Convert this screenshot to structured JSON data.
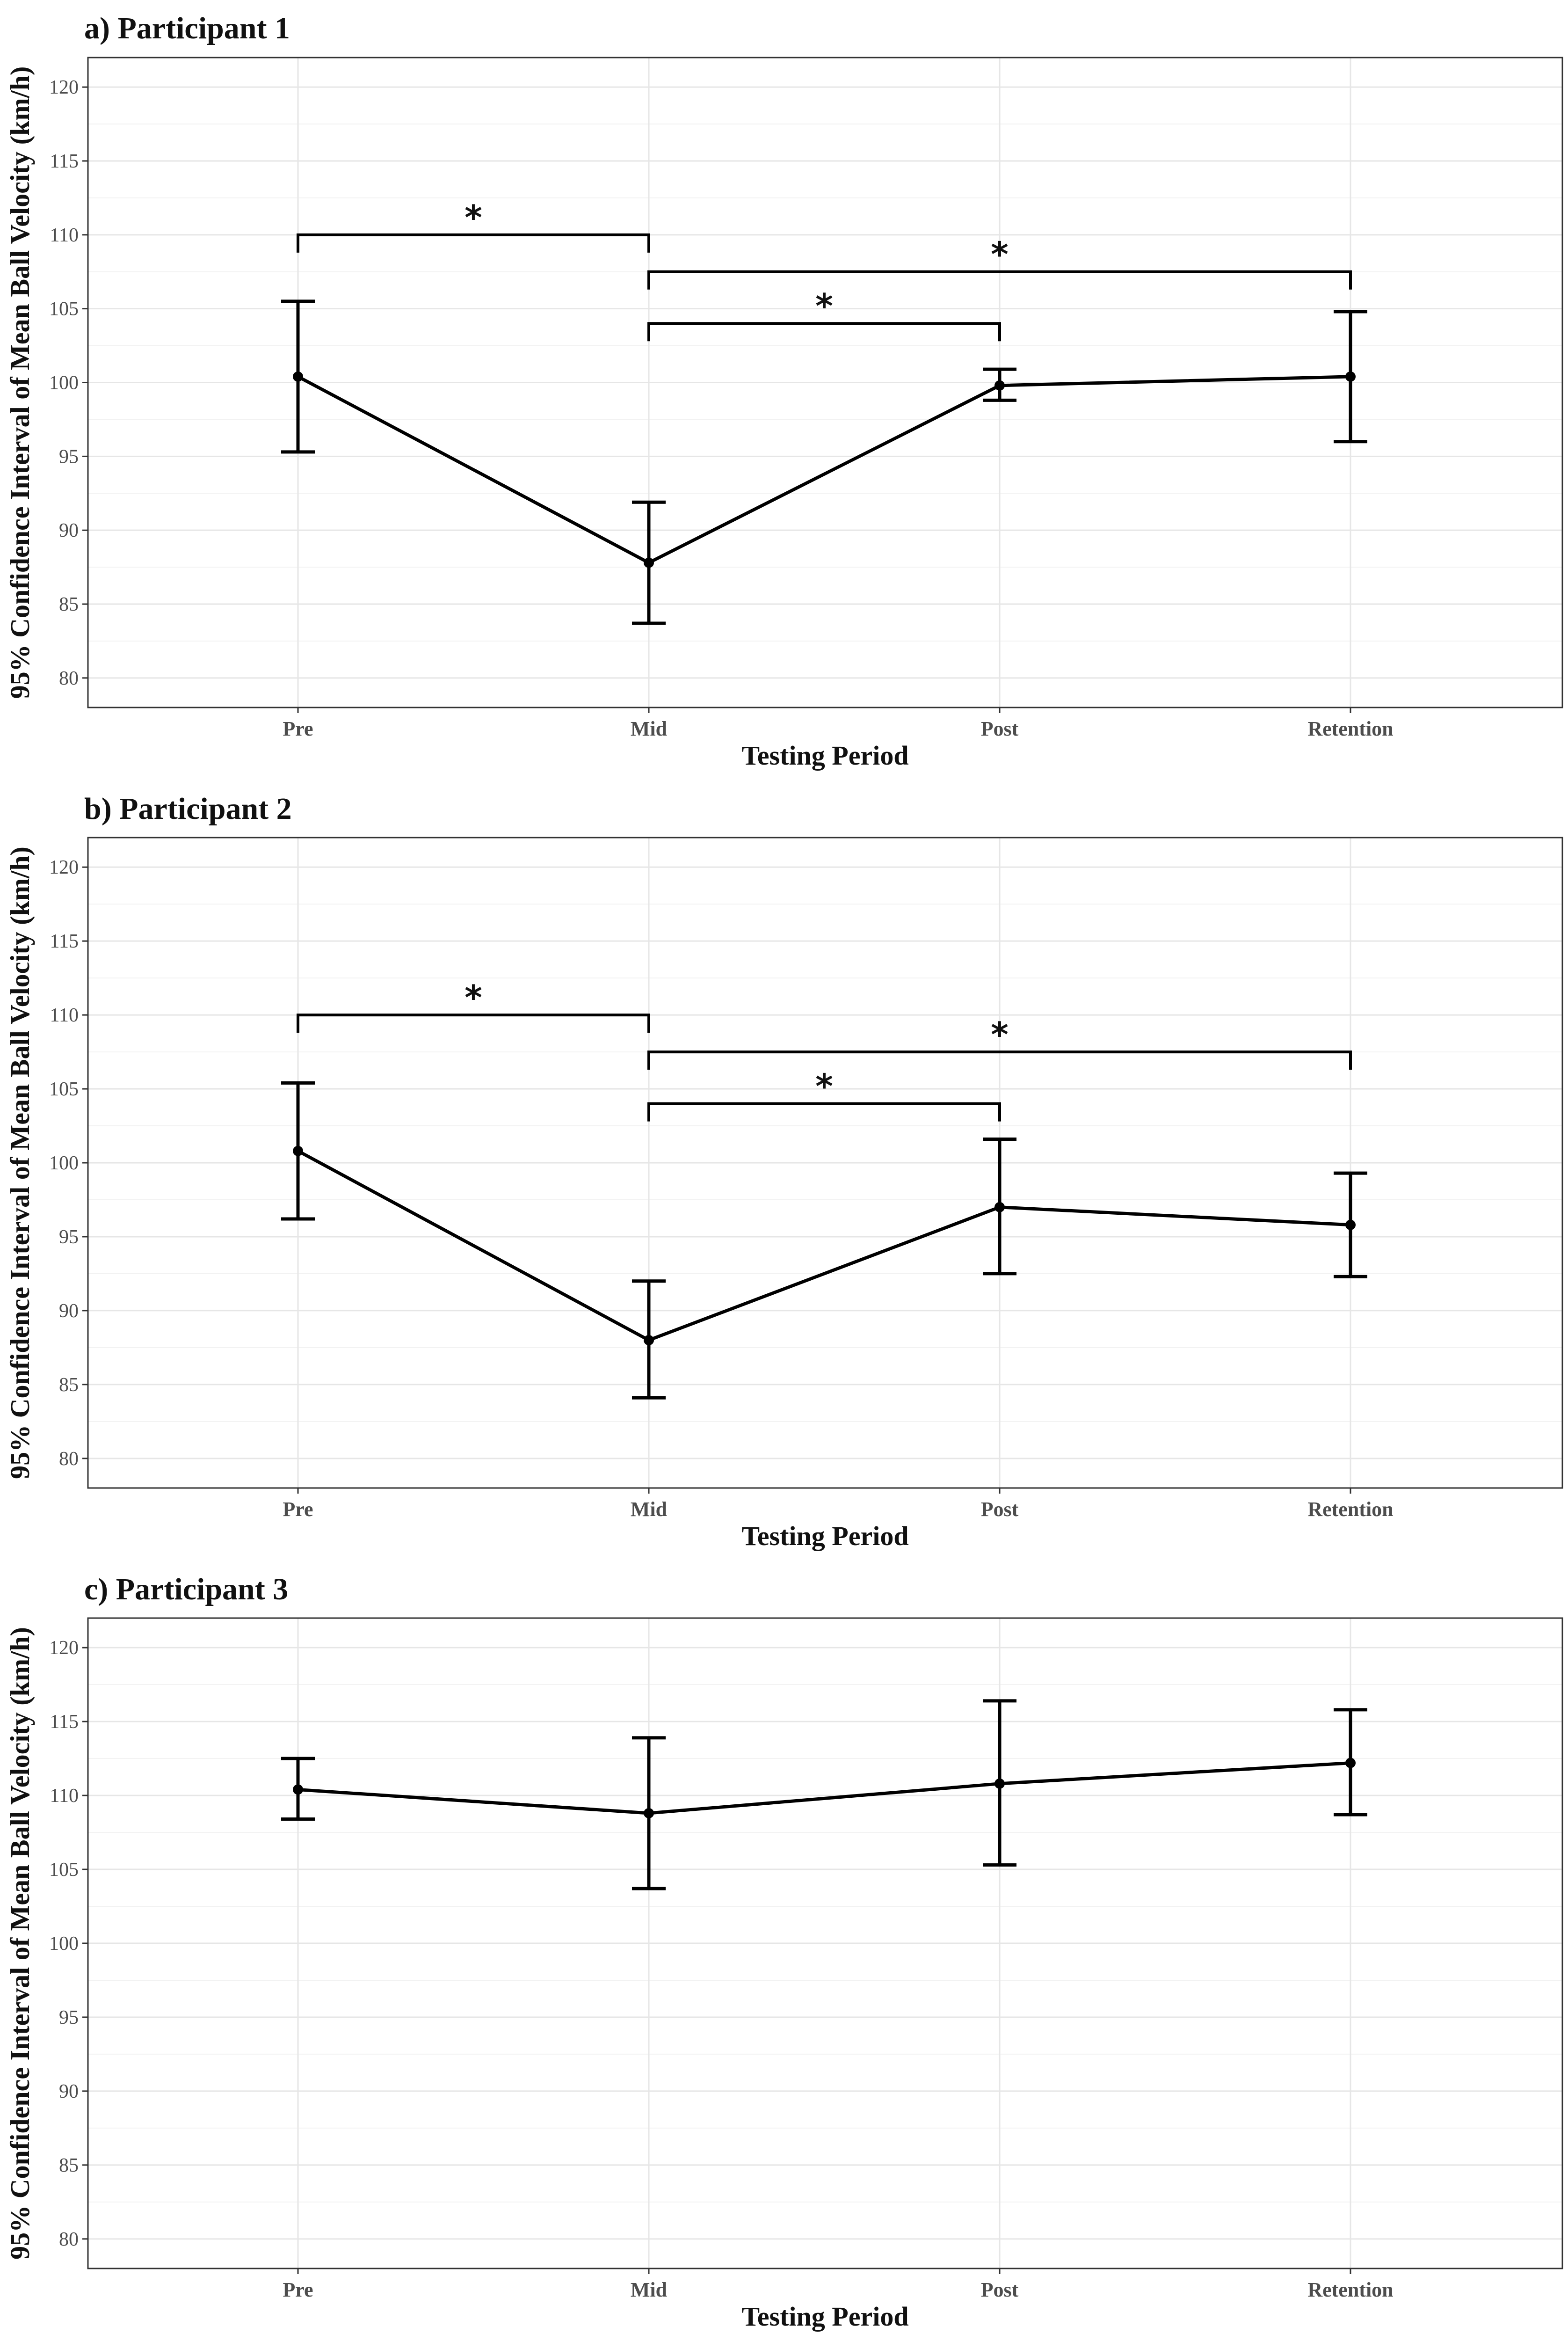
{
  "chart_data": [
    {
      "type": "line",
      "title": "a) Participant 1",
      "xlabel": "Testing Period",
      "ylabel": "95% Confidence Interval of Mean Ball Velocity (km/h)",
      "categories": [
        "Pre",
        "Mid",
        "Post",
        "Retention"
      ],
      "yticks": [
        80,
        85,
        90,
        95,
        100,
        105,
        110,
        115,
        120
      ],
      "ylim": [
        78,
        122
      ],
      "mean": [
        100.4,
        87.8,
        99.8,
        100.4
      ],
      "lower": [
        95.3,
        83.7,
        98.8,
        96.0
      ],
      "upper": [
        105.5,
        91.9,
        100.9,
        104.8
      ],
      "significance": [
        {
          "from": 0,
          "to": 1,
          "y": 110.0,
          "label": "*"
        },
        {
          "from": 1,
          "to": 3,
          "y": 107.5,
          "label": "*"
        },
        {
          "from": 1,
          "to": 2,
          "y": 104.0,
          "label": "*"
        }
      ]
    },
    {
      "type": "line",
      "title": "b) Participant 2",
      "xlabel": "Testing Period",
      "ylabel": "95% Confidence Interval of Mean Ball Velocity (km/h)",
      "categories": [
        "Pre",
        "Mid",
        "Post",
        "Retention"
      ],
      "yticks": [
        80,
        85,
        90,
        95,
        100,
        105,
        110,
        115,
        120
      ],
      "ylim": [
        78,
        122
      ],
      "mean": [
        100.8,
        88.0,
        97.0,
        95.8
      ],
      "lower": [
        96.2,
        84.1,
        92.5,
        92.3
      ],
      "upper": [
        105.4,
        92.0,
        101.6,
        99.3
      ],
      "significance": [
        {
          "from": 0,
          "to": 1,
          "y": 110.0,
          "label": "*"
        },
        {
          "from": 1,
          "to": 3,
          "y": 107.5,
          "label": "*"
        },
        {
          "from": 1,
          "to": 2,
          "y": 104.0,
          "label": "*"
        }
      ]
    },
    {
      "type": "line",
      "title": "c) Participant 3",
      "xlabel": "Testing Period",
      "ylabel": "95% Confidence Interval of Mean Ball Velocity (km/h)",
      "categories": [
        "Pre",
        "Mid",
        "Post",
        "Retention"
      ],
      "yticks": [
        80,
        85,
        90,
        95,
        100,
        105,
        110,
        115,
        120
      ],
      "ylim": [
        78,
        122
      ],
      "mean": [
        110.4,
        108.8,
        110.8,
        112.2
      ],
      "lower": [
        108.4,
        103.7,
        105.3,
        108.7
      ],
      "upper": [
        112.5,
        113.9,
        116.4,
        115.8
      ],
      "significance": []
    }
  ]
}
